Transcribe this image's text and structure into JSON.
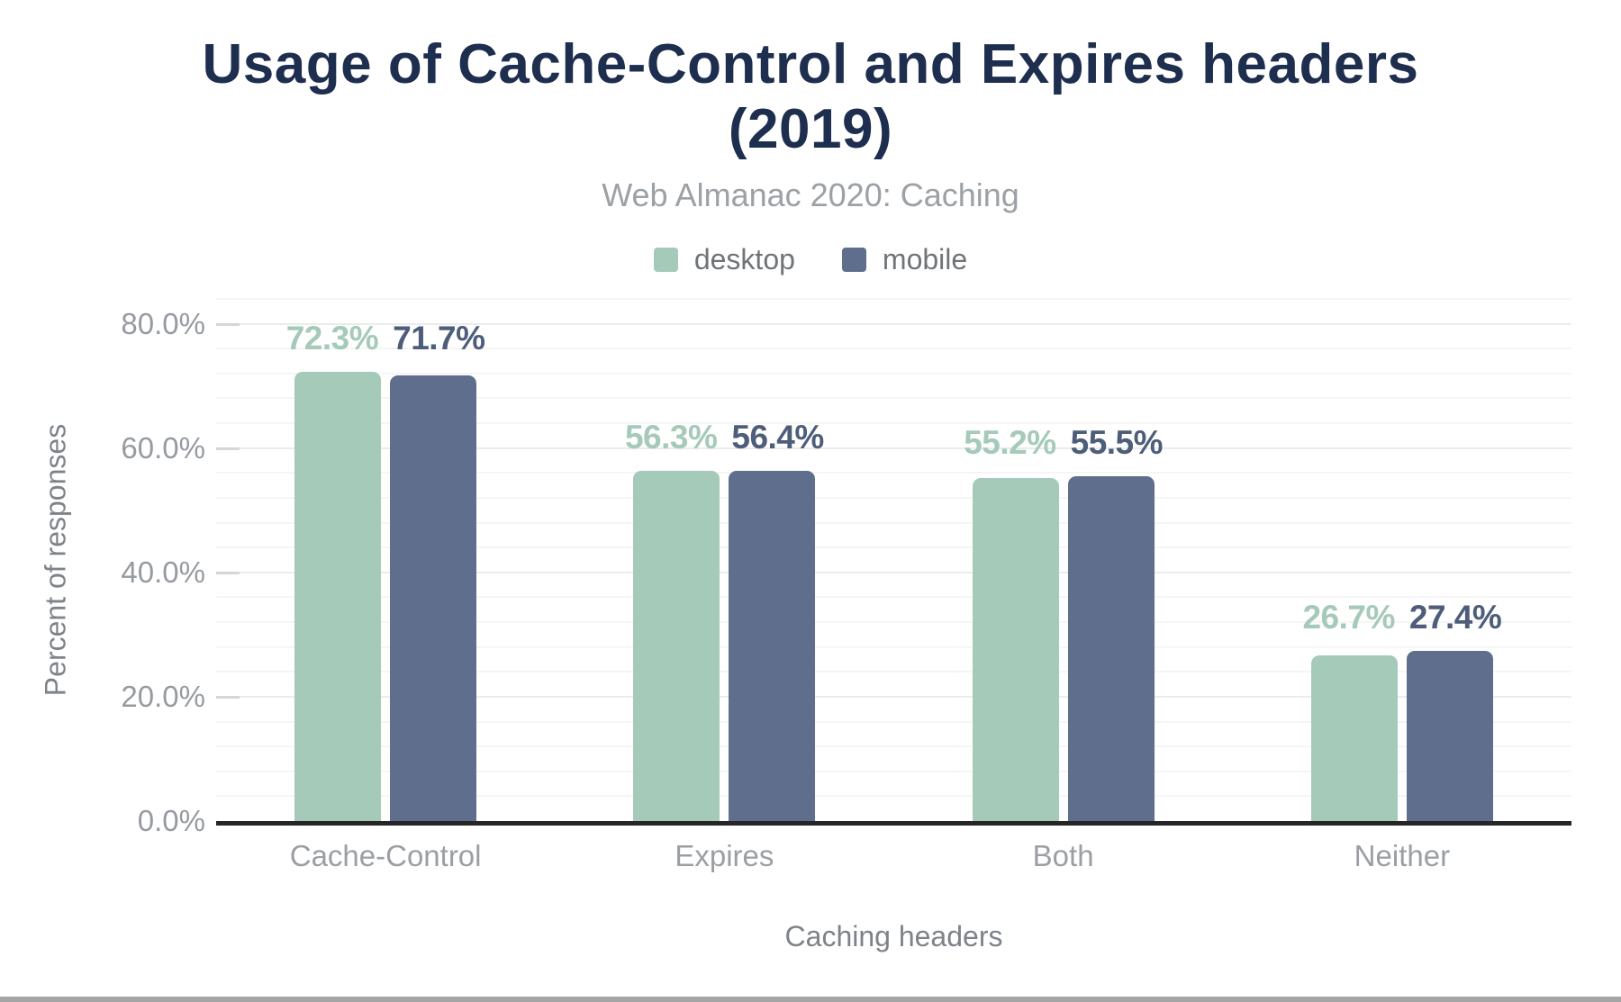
{
  "header": {
    "title_lines": [
      "Usage of Cache-Control and Expires headers",
      "(2019)"
    ],
    "subtitle": "Web Almanac 2020: Caching",
    "title_color": "#1e2e4f",
    "subtitle_color": "#9ba1a6"
  },
  "chart_data": {
    "type": "bar",
    "title": "Usage of Cache-Control and Expires headers (2019)",
    "subtitle": "Web Almanac 2020: Caching",
    "categories": [
      "Cache-Control",
      "Expires",
      "Both",
      "Neither"
    ],
    "series": [
      {
        "name": "desktop",
        "color": "#a5cab9",
        "label_color": "#a5cab9",
        "values": [
          72.3,
          56.3,
          55.2,
          26.7
        ],
        "labels": [
          "72.3%",
          "56.3%",
          "55.2%",
          "26.7%"
        ]
      },
      {
        "name": "mobile",
        "color": "#5f6e8c",
        "label_color": "#4d5d7a",
        "values": [
          71.7,
          56.4,
          55.5,
          27.4
        ],
        "labels": [
          "71.7%",
          "56.4%",
          "55.5%",
          "27.4%"
        ]
      }
    ],
    "xlabel": "Caching headers",
    "ylabel": "Percent of responses",
    "ylim": [
      0,
      84
    ],
    "yticks": [
      {
        "value": 0,
        "label": "0.0%"
      },
      {
        "value": 20,
        "label": "20.0%"
      },
      {
        "value": 40,
        "label": "40.0%"
      },
      {
        "value": 60,
        "label": "60.0%"
      },
      {
        "value": 80,
        "label": "80.0%"
      }
    ],
    "grid": {
      "minor_every": 4,
      "major_every": 20,
      "minor_color": "#f5f5f5",
      "major_color": "#ececec"
    },
    "legend_position": "top",
    "axis_line_color": "#262626"
  },
  "footer": {
    "bar_color": "#a5a5a5"
  }
}
